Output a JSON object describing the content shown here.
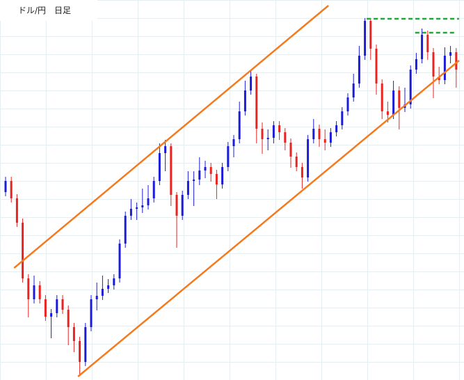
{
  "chart_data": {
    "type": "candlestick",
    "title": "ドル/円　日足",
    "up_color": "#1c1cd8",
    "down_color": "#ea2220",
    "ylim": [
      0,
      546
    ],
    "open": [
      270,
      286,
      261,
      226,
      146,
      116,
      136,
      116,
      91,
      96,
      116,
      101,
      76,
      56,
      26,
      76,
      116,
      121,
      131,
      136,
      146,
      196,
      236,
      246,
      248,
      251,
      261,
      286,
      326,
      336,
      266,
      236,
      266,
      286,
      288,
      301,
      306,
      296,
      281,
      306,
      336,
      346,
      386,
      416,
      436,
      361,
      346,
      348,
      366,
      356,
      341,
      321,
      306,
      291,
      346,
      361,
      346,
      341,
      356,
      366,
      386,
      406,
      426,
      466,
      516,
      476,
      426,
      386,
      381,
      416,
      391,
      396,
      446,
      461,
      496,
      471,
      436,
      431,
      466,
      471
    ],
    "high": [
      292,
      292,
      267,
      232,
      152,
      150,
      142,
      122,
      102,
      122,
      122,
      107,
      82,
      62,
      82,
      122,
      140,
      150,
      145,
      152,
      202,
      242,
      260,
      255,
      275,
      280,
      292,
      340,
      345,
      340,
      270,
      272,
      300,
      300,
      320,
      315,
      312,
      302,
      312,
      342,
      352,
      400,
      430,
      446,
      440,
      370,
      360,
      372,
      372,
      362,
      347,
      327,
      312,
      352,
      375,
      367,
      360,
      362,
      372,
      392,
      412,
      440,
      480,
      520,
      520,
      482,
      432,
      400,
      430,
      422,
      420,
      452,
      470,
      505,
      502,
      477,
      450,
      478,
      480,
      477
    ],
    "low": [
      264,
      255,
      220,
      140,
      90,
      110,
      110,
      85,
      60,
      90,
      95,
      50,
      40,
      6,
      20,
      70,
      100,
      115,
      125,
      130,
      140,
      190,
      230,
      230,
      240,
      245,
      255,
      280,
      300,
      250,
      190,
      230,
      260,
      250,
      280,
      290,
      285,
      260,
      275,
      300,
      320,
      340,
      380,
      410,
      340,
      325,
      330,
      340,
      345,
      330,
      305,
      300,
      275,
      285,
      340,
      335,
      330,
      335,
      350,
      360,
      380,
      400,
      420,
      460,
      460,
      410,
      375,
      370,
      375,
      360,
      385,
      390,
      440,
      455,
      460,
      405,
      425,
      425,
      455,
      420
    ],
    "close": [
      286,
      261,
      226,
      146,
      116,
      136,
      116,
      91,
      96,
      116,
      101,
      76,
      56,
      26,
      76,
      116,
      121,
      131,
      136,
      146,
      196,
      236,
      246,
      248,
      251,
      261,
      286,
      326,
      336,
      266,
      236,
      266,
      286,
      288,
      301,
      306,
      296,
      281,
      306,
      336,
      346,
      386,
      416,
      436,
      361,
      346,
      348,
      366,
      356,
      341,
      321,
      306,
      291,
      346,
      361,
      346,
      341,
      356,
      366,
      386,
      406,
      426,
      466,
      516,
      476,
      426,
      386,
      381,
      416,
      391,
      396,
      446,
      461,
      496,
      471,
      436,
      431,
      466,
      471,
      446
    ],
    "lines": [
      {
        "x": [
          1.5,
          56.6
        ],
        "y": [
          161,
          538
        ],
        "color": "#f57a1e",
        "style": "solid"
      },
      {
        "x": [
          12.7,
          79.5
        ],
        "y": [
          5,
          459
        ],
        "color": "#f57a1e",
        "style": "solid"
      },
      {
        "x": [
          63.3,
          79.5
        ],
        "y": [
          519,
          519
        ],
        "color": "#1fa83a",
        "style": "dashed"
      },
      {
        "x": [
          71.8,
          78.9
        ],
        "y": [
          499,
          499
        ],
        "color": "#1fa83a",
        "style": "dashed"
      }
    ]
  }
}
